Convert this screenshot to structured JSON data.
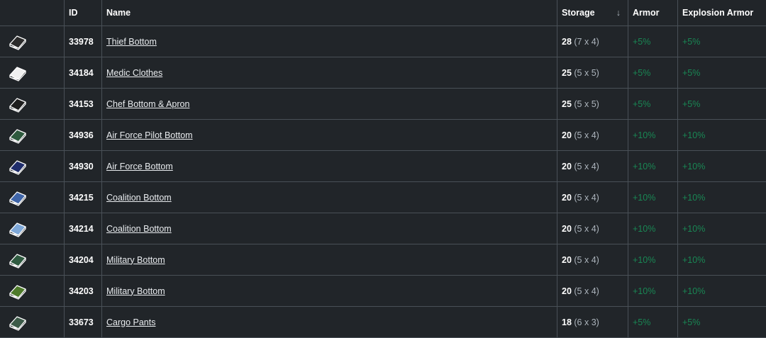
{
  "headers": {
    "icon": "",
    "id": "ID",
    "name": "Name",
    "storage": "Storage",
    "storage_sort": "↓",
    "armor": "Armor",
    "explosion": "Explosion Armor"
  },
  "rows": [
    {
      "icon_color": "#2b2b2b",
      "id": "33978",
      "name": "Thief Bottom",
      "storage": "28",
      "dims": "(7 x 4)",
      "armor": "+5%",
      "explosion": "+5%"
    },
    {
      "icon_color": "#f0f0f0",
      "id": "34184",
      "name": "Medic Clothes",
      "storage": "25",
      "dims": "(5 x 5)",
      "armor": "+5%",
      "explosion": "+5%"
    },
    {
      "icon_color": "#1e1e1e",
      "id": "34153",
      "name": "Chef Bottom & Apron",
      "storage": "25",
      "dims": "(5 x 5)",
      "armor": "+5%",
      "explosion": "+5%"
    },
    {
      "icon_color": "#2e5a3e",
      "id": "34936",
      "name": "Air Force Pilot Bottom",
      "storage": "20",
      "dims": "(5 x 4)",
      "armor": "+10%",
      "explosion": "+10%"
    },
    {
      "icon_color": "#1f2d6b",
      "id": "34930",
      "name": "Air Force Bottom",
      "storage": "20",
      "dims": "(5 x 4)",
      "armor": "+10%",
      "explosion": "+10%"
    },
    {
      "icon_color": "#3f65a8",
      "id": "34215",
      "name": "Coalition Bottom",
      "storage": "20",
      "dims": "(5 x 4)",
      "armor": "+10%",
      "explosion": "+10%"
    },
    {
      "icon_color": "#7ea8d8",
      "id": "34214",
      "name": "Coalition Bottom",
      "storage": "20",
      "dims": "(5 x 4)",
      "armor": "+10%",
      "explosion": "+10%"
    },
    {
      "icon_color": "#2f5a40",
      "id": "34204",
      "name": "Military Bottom",
      "storage": "20",
      "dims": "(5 x 4)",
      "armor": "+10%",
      "explosion": "+10%"
    },
    {
      "icon_color": "#4e7a2a",
      "id": "34203",
      "name": "Military Bottom",
      "storage": "20",
      "dims": "(5 x 4)",
      "armor": "+10%",
      "explosion": "+10%"
    },
    {
      "icon_color": "#3c5a48",
      "id": "33673",
      "name": "Cargo Pants",
      "storage": "18",
      "dims": "(6 x 3)",
      "armor": "+5%",
      "explosion": "+5%"
    }
  ]
}
